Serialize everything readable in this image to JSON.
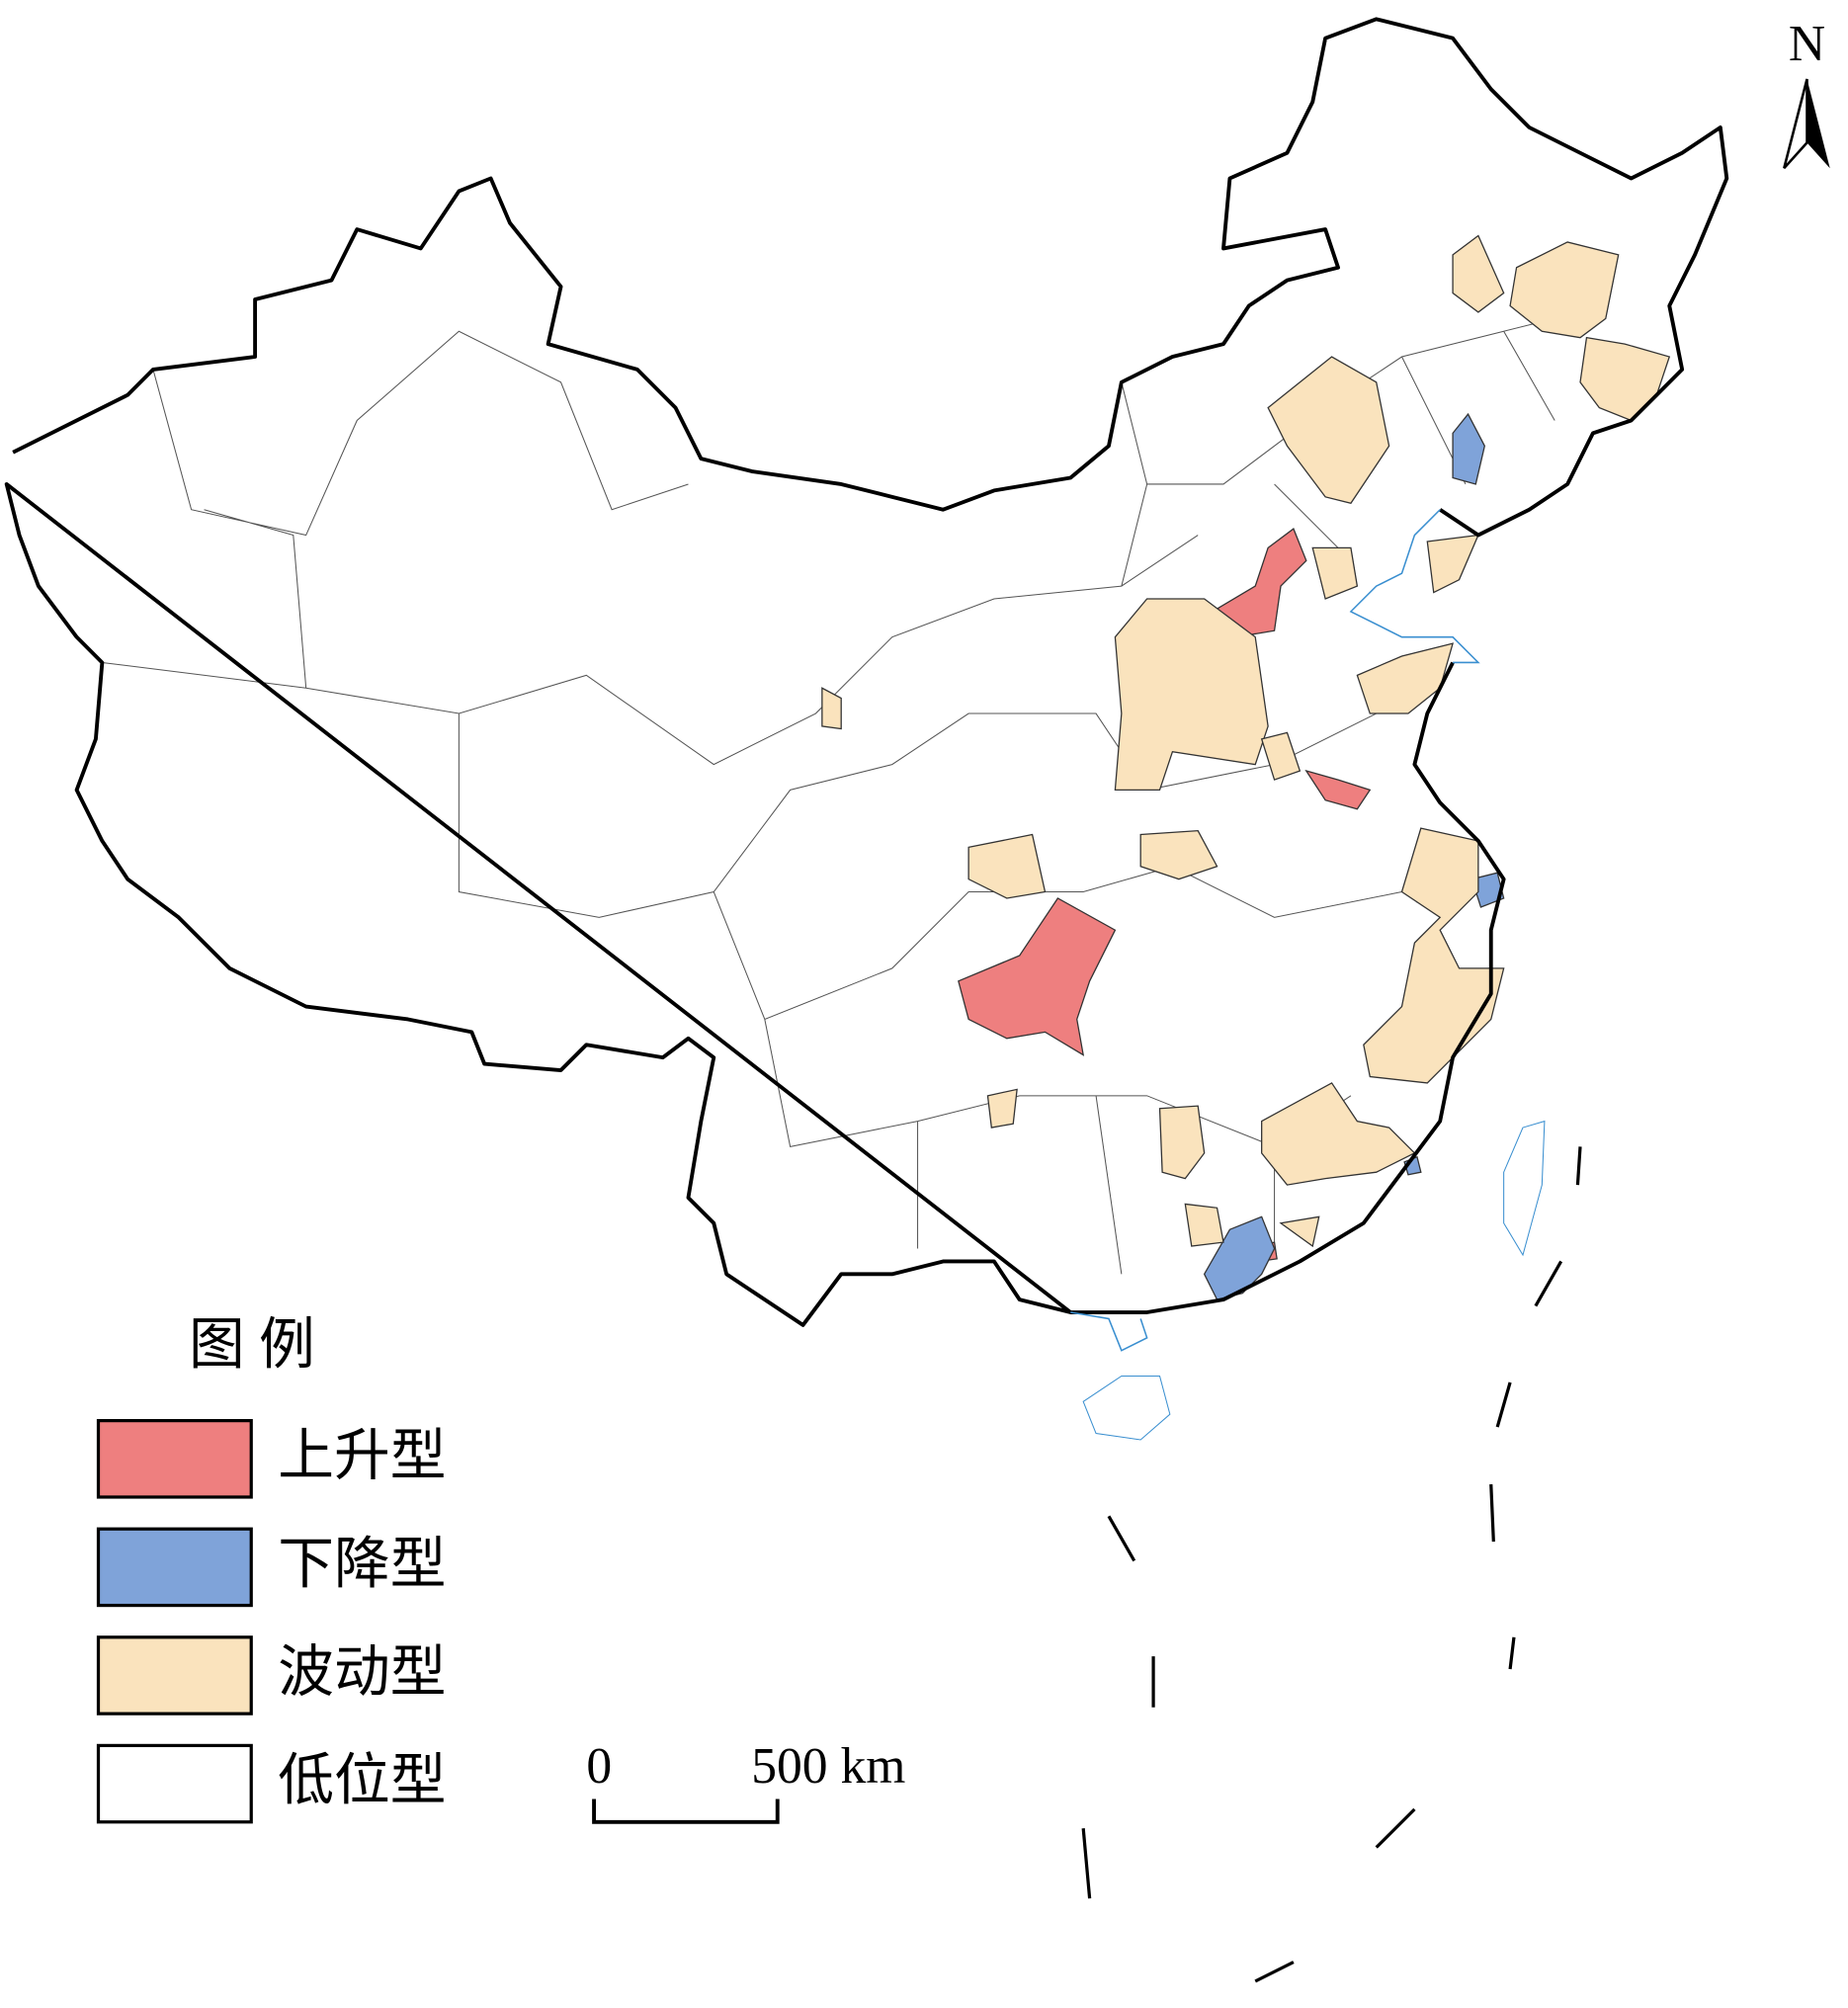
{
  "north": "N",
  "legend": {
    "title": "图 例",
    "items": [
      {
        "label": "上升型",
        "color": "#ee7f7f"
      },
      {
        "label": "下降型",
        "color": "#7fa3d9"
      },
      {
        "label": "波动型",
        "color": "#fae3bd"
      },
      {
        "label": "低位型",
        "color": "#ffffff"
      }
    ]
  },
  "scale_bar": {
    "start": "0",
    "end": "500 km"
  }
}
